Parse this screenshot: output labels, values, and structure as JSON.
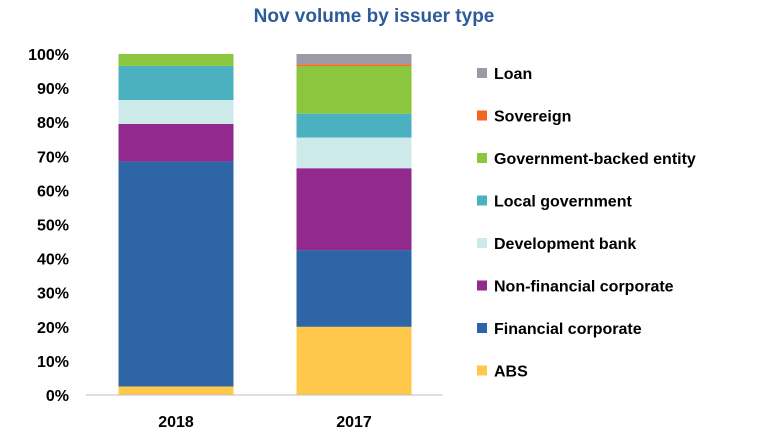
{
  "chart_data": {
    "type": "bar",
    "stacked": true,
    "title": "Nov volume by issuer type",
    "categories": [
      "2018",
      "2017"
    ],
    "ylim": [
      0,
      100
    ],
    "y_ticks": [
      "0%",
      "10%",
      "20%",
      "30%",
      "40%",
      "50%",
      "60%",
      "70%",
      "80%",
      "90%",
      "100%"
    ],
    "grid": false,
    "legend_position": "right",
    "series": [
      {
        "name": "ABS",
        "color": "#ffc84a",
        "values": [
          2.5,
          20.0
        ]
      },
      {
        "name": "Financial corporate",
        "color": "#2e65a6",
        "values": [
          66.0,
          22.5
        ]
      },
      {
        "name": "Non-financial corporate",
        "color": "#922a8e",
        "values": [
          11.0,
          24.0
        ]
      },
      {
        "name": "Development bank",
        "color": "#cde9e9",
        "values": [
          7.0,
          9.0
        ]
      },
      {
        "name": "Local government",
        "color": "#4bb0c0",
        "values": [
          10.0,
          7.0
        ]
      },
      {
        "name": "Government-backed entity",
        "color": "#8cc63f",
        "values": [
          3.5,
          14.0
        ]
      },
      {
        "name": "Sovereign",
        "color": "#f26522",
        "values": [
          0,
          0.5
        ]
      },
      {
        "name": "Loan",
        "color": "#9c9aa6",
        "values": [
          0,
          3.0
        ]
      }
    ]
  }
}
